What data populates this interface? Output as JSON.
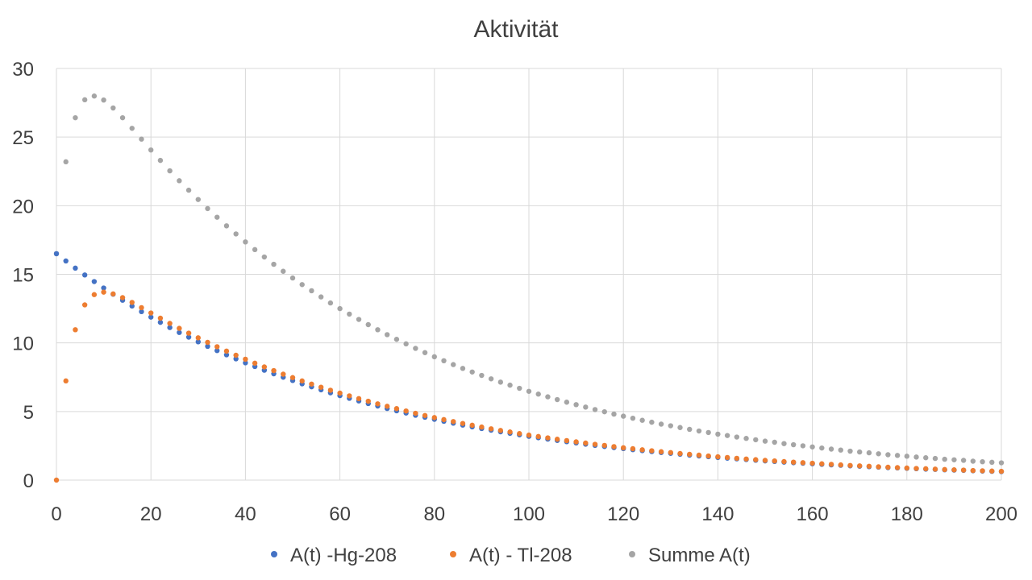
{
  "chart_data": {
    "type": "scatter",
    "title": "Aktivität",
    "xlabel": "",
    "ylabel": "",
    "xlim": [
      0,
      200
    ],
    "ylim": [
      0,
      30
    ],
    "x_ticks": [
      "0",
      "20",
      "40",
      "60",
      "80",
      "100",
      "120",
      "140",
      "160",
      "180",
      "200"
    ],
    "y_ticks": [
      "0",
      "5",
      "10",
      "15",
      "20",
      "25",
      "30"
    ],
    "grid": true,
    "legend_position": "bottom",
    "series": [
      {
        "name": "A(t) -Hg-208",
        "color": "#4472C4",
        "x": [
          0,
          2,
          4,
          6,
          8,
          10,
          12,
          14,
          16,
          18,
          20,
          22,
          24,
          26,
          28,
          30,
          32,
          34,
          36,
          38,
          40,
          42,
          44,
          46,
          48,
          50,
          52,
          54,
          56,
          58,
          60,
          62,
          64,
          66,
          68,
          70,
          72,
          74,
          76,
          78,
          80,
          82,
          84,
          86,
          88,
          90,
          92,
          94,
          96,
          98,
          100,
          102,
          104,
          106,
          108,
          110,
          112,
          114,
          116,
          118,
          120,
          122,
          124,
          126,
          128,
          130,
          132,
          134,
          136,
          138,
          140,
          142,
          144,
          146,
          148,
          150,
          152,
          154,
          156,
          158,
          160,
          162,
          164,
          166,
          168,
          170,
          172,
          174,
          176,
          178,
          180,
          182,
          184,
          186,
          188,
          190,
          192,
          194,
          196,
          198,
          200
        ],
        "y": [
          16.5,
          15.97,
          15.45,
          14.95,
          14.47,
          14.0,
          13.55,
          13.11,
          12.69,
          12.28,
          11.88,
          11.5,
          11.12,
          10.76,
          10.42,
          10.08,
          9.75,
          9.44,
          9.13,
          8.84,
          8.55,
          8.28,
          8.01,
          7.75,
          7.5,
          7.26,
          7.02,
          6.8,
          6.58,
          6.36,
          6.16,
          5.96,
          5.77,
          5.58,
          5.4,
          5.22,
          5.05,
          4.89,
          4.73,
          4.58,
          4.43,
          4.29,
          4.15,
          4.01,
          3.88,
          3.76,
          3.64,
          3.52,
          3.41,
          3.3,
          3.19,
          3.09,
          2.99,
          2.89,
          2.8,
          2.71,
          2.62,
          2.53,
          2.45,
          2.37,
          2.3,
          2.22,
          2.15,
          2.08,
          2.01,
          1.95,
          1.89,
          1.82,
          1.76,
          1.71,
          1.65,
          1.6,
          1.55,
          1.5,
          1.45,
          1.4,
          1.36,
          1.31,
          1.27,
          1.23,
          1.19,
          1.15,
          1.11,
          1.08,
          1.04,
          1.01,
          0.98,
          0.95,
          0.91,
          0.89,
          0.86,
          0.83,
          0.8,
          0.78,
          0.75,
          0.73,
          0.71,
          0.68,
          0.66,
          0.64,
          0.62
        ]
      },
      {
        "name": "A(t) - Tl-208",
        "color": "#ED7D31",
        "x": [
          0,
          2,
          4,
          6,
          8,
          10,
          12,
          14,
          16,
          18,
          20,
          22,
          24,
          26,
          28,
          30,
          32,
          34,
          36,
          38,
          40,
          42,
          44,
          46,
          48,
          50,
          52,
          54,
          56,
          58,
          60,
          62,
          64,
          66,
          68,
          70,
          72,
          74,
          76,
          78,
          80,
          82,
          84,
          86,
          88,
          90,
          92,
          94,
          96,
          98,
          100,
          102,
          104,
          106,
          108,
          110,
          112,
          114,
          116,
          118,
          120,
          122,
          124,
          126,
          128,
          130,
          132,
          134,
          136,
          138,
          140,
          142,
          144,
          146,
          148,
          150,
          152,
          154,
          156,
          158,
          160,
          162,
          164,
          166,
          168,
          170,
          172,
          174,
          176,
          178,
          180,
          182,
          184,
          186,
          188,
          190,
          192,
          194,
          196,
          198,
          200
        ],
        "y": [
          0.0,
          7.23,
          10.96,
          12.77,
          13.52,
          13.7,
          13.57,
          13.3,
          12.95,
          12.57,
          12.18,
          11.8,
          11.42,
          11.06,
          10.71,
          10.37,
          10.04,
          9.72,
          9.4,
          9.1,
          8.81,
          8.52,
          8.25,
          7.98,
          7.72,
          7.47,
          7.23,
          7.0,
          6.77,
          6.55,
          6.34,
          6.14,
          5.94,
          5.75,
          5.56,
          5.38,
          5.21,
          5.04,
          4.87,
          4.71,
          4.56,
          4.41,
          4.27,
          4.13,
          4.0,
          3.87,
          3.74,
          3.62,
          3.51,
          3.39,
          3.28,
          3.18,
          3.08,
          2.98,
          2.88,
          2.79,
          2.7,
          2.61,
          2.53,
          2.44,
          2.36,
          2.29,
          2.21,
          2.14,
          2.07,
          2.01,
          1.94,
          1.88,
          1.82,
          1.76,
          1.7,
          1.65,
          1.59,
          1.54,
          1.49,
          1.44,
          1.4,
          1.35,
          1.31,
          1.27,
          1.23,
          1.19,
          1.15,
          1.11,
          1.07,
          1.04,
          1.01,
          0.97,
          0.94,
          0.91,
          0.88,
          0.85,
          0.83,
          0.8,
          0.77,
          0.75,
          0.73,
          0.7,
          0.68,
          0.66,
          0.64
        ]
      },
      {
        "name": "Summe A(t)",
        "color": "#A5A5A5",
        "x": [
          0,
          2,
          4,
          6,
          8,
          10,
          12,
          14,
          16,
          18,
          20,
          22,
          24,
          26,
          28,
          30,
          32,
          34,
          36,
          38,
          40,
          42,
          44,
          46,
          48,
          50,
          52,
          54,
          56,
          58,
          60,
          62,
          64,
          66,
          68,
          70,
          72,
          74,
          76,
          78,
          80,
          82,
          84,
          86,
          88,
          90,
          92,
          94,
          96,
          98,
          100,
          102,
          104,
          106,
          108,
          110,
          112,
          114,
          116,
          118,
          120,
          122,
          124,
          126,
          128,
          130,
          132,
          134,
          136,
          138,
          140,
          142,
          144,
          146,
          148,
          150,
          152,
          154,
          156,
          158,
          160,
          162,
          164,
          166,
          168,
          170,
          172,
          174,
          176,
          178,
          180,
          182,
          184,
          186,
          188,
          190,
          192,
          194,
          196,
          198,
          200
        ],
        "y": [
          16.5,
          23.2,
          26.41,
          27.72,
          27.99,
          27.7,
          27.12,
          26.41,
          25.64,
          24.85,
          24.06,
          23.3,
          22.54,
          21.82,
          21.13,
          20.45,
          19.79,
          19.16,
          18.53,
          17.94,
          17.36,
          16.8,
          16.26,
          15.73,
          15.22,
          14.73,
          14.25,
          13.8,
          13.35,
          12.91,
          12.5,
          12.1,
          11.71,
          11.33,
          10.96,
          10.6,
          10.26,
          9.93,
          9.6,
          9.29,
          8.99,
          8.7,
          8.42,
          8.14,
          7.88,
          7.63,
          7.38,
          7.14,
          6.92,
          6.69,
          6.47,
          6.27,
          6.07,
          5.87,
          5.68,
          5.5,
          5.32,
          5.14,
          4.98,
          4.81,
          4.66,
          4.51,
          4.36,
          4.22,
          4.08,
          3.96,
          3.83,
          3.7,
          3.58,
          3.47,
          3.35,
          3.25,
          3.14,
          3.04,
          2.94,
          2.84,
          2.76,
          2.66,
          2.58,
          2.5,
          2.42,
          2.34,
          2.26,
          2.19,
          2.11,
          2.05,
          1.99,
          1.92,
          1.85,
          1.8,
          1.74,
          1.68,
          1.63,
          1.58,
          1.52,
          1.48,
          1.44,
          1.38,
          1.34,
          1.3,
          1.26
        ]
      }
    ]
  }
}
